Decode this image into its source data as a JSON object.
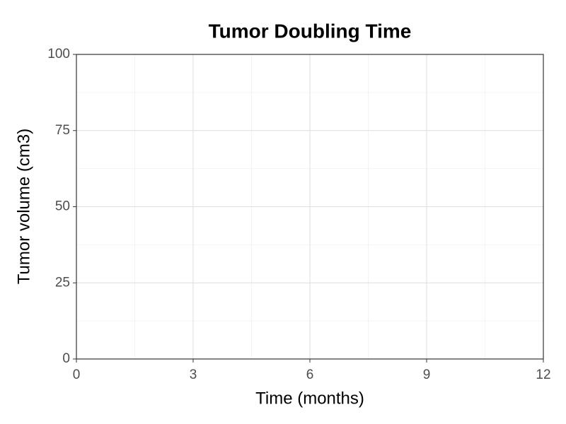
{
  "chart_data": {
    "type": "line",
    "title": "Tumor Doubling Time",
    "x_label": "Time (months)",
    "y_label": "Tumor volume (cm3)",
    "x": [],
    "series": [],
    "xlim": [
      0,
      12
    ],
    "xticks": [
      0,
      3,
      6,
      9,
      12
    ],
    "ylim": [
      0,
      100
    ],
    "yticks": [
      0,
      25,
      50,
      75,
      100
    ],
    "grid": true,
    "minor_grid": true
  }
}
